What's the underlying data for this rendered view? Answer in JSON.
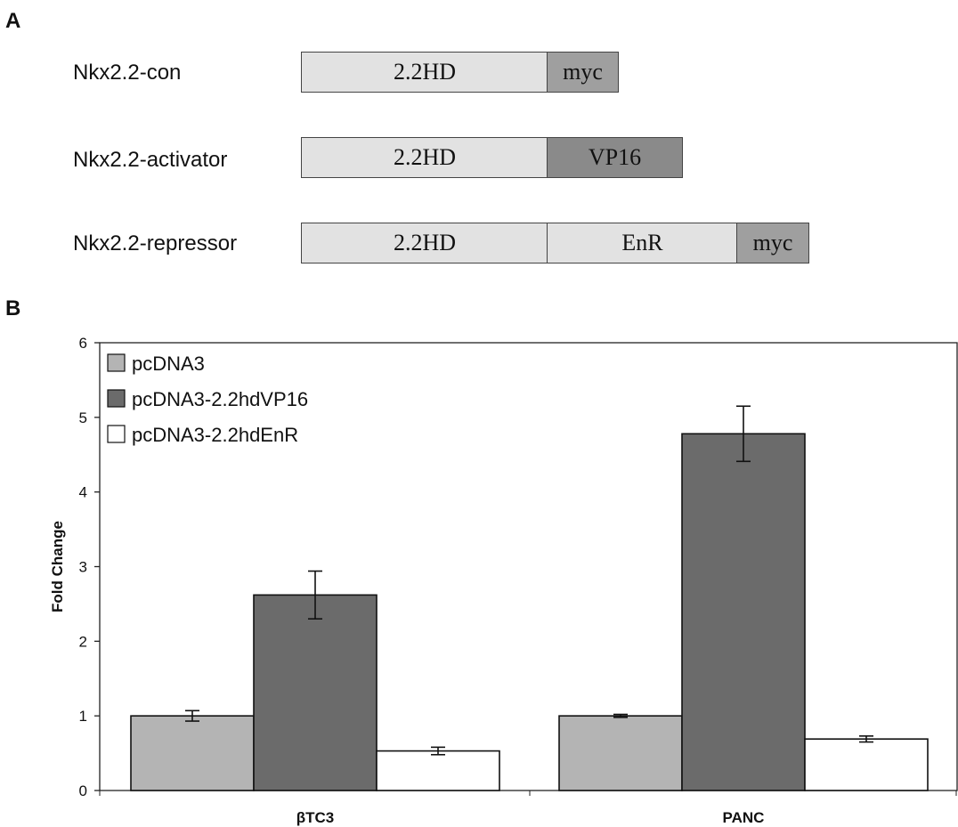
{
  "panels": {
    "a": "A",
    "b": "B"
  },
  "constructs": [
    {
      "name": "Nkx2.2-con",
      "segments": [
        "2.2HD",
        "myc"
      ]
    },
    {
      "name": "Nkx2.2-activator",
      "segments": [
        "2.2HD",
        "VP16"
      ]
    },
    {
      "name": "Nkx2.2-repressor",
      "segments": [
        "2.2HD",
        "EnR",
        "myc"
      ]
    }
  ],
  "chart_data": {
    "type": "bar",
    "ylabel": "Fold Change",
    "ylim": [
      0,
      6
    ],
    "yticks": [
      "0",
      "1",
      "2",
      "3",
      "4",
      "5",
      "6"
    ],
    "categories": [
      "βTC3",
      "PANC"
    ],
    "legend_position": "top-left",
    "series": [
      {
        "name": "pcDNA3",
        "color": "#b4b4b4",
        "values": [
          1.0,
          1.0
        ],
        "errors": [
          0.07,
          0.02
        ]
      },
      {
        "name": "pcDNA3-2.2hdVP16",
        "color": "#6b6b6b",
        "values": [
          2.62,
          4.78
        ],
        "errors": [
          0.32,
          0.37
        ]
      },
      {
        "name": "pcDNA3-2.2hdEnR",
        "color": "#ffffff",
        "values": [
          0.53,
          0.69
        ],
        "errors": [
          0.05,
          0.04
        ]
      }
    ]
  }
}
